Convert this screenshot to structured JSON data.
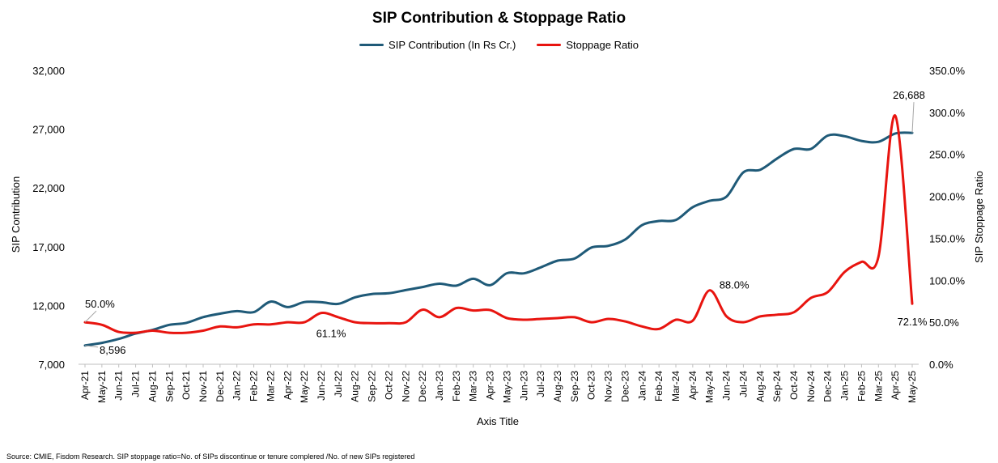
{
  "chart_data": {
    "type": "line",
    "title": "SIP Contribution & Stoppage Ratio",
    "xlabel": "Axis Title",
    "ylabel": "SIP Contribution",
    "y2label": "SIP Stoppage Ratio",
    "categories": [
      "Apr-21",
      "May-21",
      "Jun-21",
      "Jul-21",
      "Aug-21",
      "Sep-21",
      "Oct-21",
      "Nov-21",
      "Dec-21",
      "Jan-22",
      "Feb-22",
      "Mar-22",
      "Apr-22",
      "May-22",
      "Jun-22",
      "Jul-22",
      "Aug-22",
      "Sep-22",
      "Oct-22",
      "Nov-22",
      "Dec-22",
      "Jan-23",
      "Feb-23",
      "Mar-23",
      "Apr-23",
      "May-23",
      "Jun-23",
      "Jul-23",
      "Aug-23",
      "Sep-23",
      "Oct-23",
      "Nov-23",
      "Dec-23",
      "Jan-24",
      "Feb-24",
      "Mar-24",
      "Apr-24",
      "May-24",
      "Jun-24",
      "Jul-24",
      "Aug-24",
      "Sep-24",
      "Oct-24",
      "Nov-24",
      "Dec-24",
      "Jan-25",
      "Feb-25",
      "Mar-25",
      "Apr-25",
      "May-25"
    ],
    "ylim": [
      7000,
      32000
    ],
    "yticks": [
      "7,000",
      "12,000",
      "17,000",
      "22,000",
      "27,000",
      "32,000"
    ],
    "y2lim": [
      0,
      350
    ],
    "y2ticks": [
      "0.0%",
      "50.0%",
      "100.0%",
      "150.0%",
      "200.0%",
      "250.0%",
      "300.0%",
      "350.0%"
    ],
    "legend_position": "top",
    "grid": false,
    "series": [
      {
        "name": "SIP Contribution (In Rs Cr.)",
        "axis": "left",
        "color": "#1f5a78",
        "values": [
          8596,
          8819,
          9156,
          9609,
          9923,
          10351,
          10519,
          11005,
          11305,
          11517,
          11438,
          12328,
          11863,
          12286,
          12276,
          12140,
          12693,
          12976,
          13041,
          13306,
          13573,
          13856,
          13686,
          14276,
          13728,
          14749,
          14734,
          15245,
          15814,
          15995,
          16928,
          17073,
          17610,
          18838,
          19187,
          19271,
          20371,
          20904,
          21262,
          23332,
          23547,
          24509,
          25323,
          25320,
          26459,
          26400,
          25999,
          25926,
          26632,
          26688
        ]
      },
      {
        "name": "Stoppage Ratio",
        "axis": "right",
        "color": "#e8140f",
        "values": [
          50.0,
          47.0,
          38.5,
          37.5,
          40.0,
          37.5,
          37.5,
          40.0,
          45.0,
          44.0,
          47.5,
          47.5,
          50.0,
          50.0,
          61.1,
          56.0,
          50.0,
          49.0,
          49.0,
          50.0,
          65.0,
          56.0,
          67.0,
          64.0,
          64.5,
          55.0,
          53.0,
          54.0,
          55.0,
          56.0,
          50.0,
          54.0,
          51.0,
          45.0,
          42.0,
          53.0,
          52.0,
          88.0,
          57.0,
          50.0,
          57.0,
          59.0,
          62.0,
          79.0,
          86.0,
          110.0,
          122.0,
          128.0,
          296.0,
          72.1
        ]
      }
    ],
    "annotations": [
      {
        "series": 0,
        "index": 0,
        "label": "8,596"
      },
      {
        "series": 0,
        "index": 49,
        "label": "26,688"
      },
      {
        "series": 1,
        "index": 0,
        "label": "50.0%"
      },
      {
        "series": 1,
        "index": 14,
        "label": "61.1%"
      },
      {
        "series": 1,
        "index": 37,
        "label": "88.0%"
      },
      {
        "series": 1,
        "index": 49,
        "label": "72.1%"
      }
    ]
  },
  "source_note": "Source: CMIE, Fisdom Research. SIP stoppage ratio=No. of SIPs discontinue or tenure complered /No. of new SIPs registered"
}
